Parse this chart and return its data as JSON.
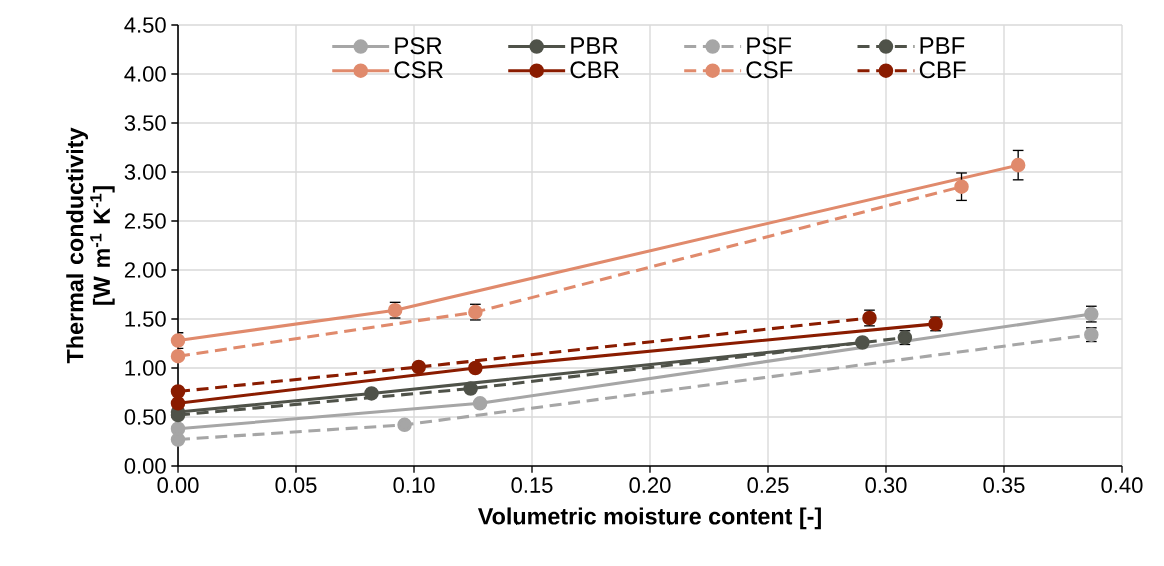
{
  "chart_data": {
    "type": "line",
    "xlabel": "Volumetric moisture content [-]",
    "ylabel": "Thermal conductivity [W m$^{-1}$ K$^{-1}$]",
    "xlim": [
      0,
      0.4
    ],
    "xticks": [
      {
        "value": 0,
        "label": "0.00"
      },
      {
        "value": 0.05,
        "label": "0.05"
      },
      {
        "value": 0.1,
        "label": "0.10"
      },
      {
        "value": 0.15,
        "label": "0.15"
      },
      {
        "value": 0.2,
        "label": "0.20"
      },
      {
        "value": 0.25,
        "label": "0.25"
      },
      {
        "value": 0.3,
        "label": "0.30"
      },
      {
        "value": 0.35,
        "label": "0.35"
      },
      {
        "value": 0.4,
        "label": "0.40"
      }
    ],
    "ylim": [
      0,
      4.5
    ],
    "yticks": [
      {
        "value": 0,
        "label": "0.00"
      },
      {
        "value": 0.5,
        "label": "0.50"
      },
      {
        "value": 1,
        "label": "1.00"
      },
      {
        "value": 1.5,
        "label": "1.50"
      },
      {
        "value": 2,
        "label": "2.00"
      },
      {
        "value": 2.5,
        "label": "2.50"
      },
      {
        "value": 3,
        "label": "3.00"
      },
      {
        "value": 3.5,
        "label": "3.50"
      },
      {
        "value": 4,
        "label": "4.00"
      },
      {
        "value": 4.5,
        "label": "4.50"
      }
    ],
    "grid": true,
    "legend": "top",
    "marker": "circle",
    "series": [
      {
        "name": "PSR",
        "color": "#a6a6a6",
        "line_style": "solid",
        "x": [
          0,
          0.128,
          0.387
        ],
        "values": [
          0.38,
          0.64,
          1.55
        ],
        "errors": [
          null,
          null,
          0.08
        ]
      },
      {
        "name": "PBR",
        "color": "#4f5249",
        "line_style": "solid",
        "x": [
          0,
          0.082,
          0.29
        ],
        "values": [
          0.55,
          0.74,
          1.26
        ],
        "errors": [
          null,
          null,
          null
        ]
      },
      {
        "name": "PSF",
        "color": "#a6a6a6",
        "line_style": "dashed",
        "x": [
          0,
          0.096,
          0.387
        ],
        "values": [
          0.27,
          0.42,
          1.34
        ],
        "errors": [
          null,
          null,
          0.07
        ]
      },
      {
        "name": "PBF",
        "color": "#4f5249",
        "line_style": "dashed",
        "x": [
          0,
          0.124,
          0.308
        ],
        "values": [
          0.52,
          0.79,
          1.31
        ],
        "errors": [
          null,
          null,
          0.07
        ]
      },
      {
        "name": "CSR",
        "color": "#e08a6c",
        "line_style": "solid",
        "x": [
          0,
          0.092,
          0.356
        ],
        "values": [
          1.28,
          1.59,
          3.07
        ],
        "errors": [
          0.08,
          0.08,
          0.15
        ]
      },
      {
        "name": "CBR",
        "color": "#8a1c00",
        "line_style": "solid",
        "x": [
          0,
          0.126,
          0.321
        ],
        "values": [
          0.64,
          1.0,
          1.45
        ],
        "errors": [
          null,
          null,
          0.07
        ]
      },
      {
        "name": "CSF",
        "color": "#e08a6c",
        "line_style": "dashed",
        "x": [
          0,
          0.126,
          0.332
        ],
        "values": [
          1.12,
          1.57,
          2.85
        ],
        "errors": [
          null,
          0.08,
          0.14
        ]
      },
      {
        "name": "CBF",
        "color": "#8a1c00",
        "line_style": "dashed",
        "x": [
          0,
          0.102,
          0.293
        ],
        "values": [
          0.76,
          1.01,
          1.51
        ],
        "errors": [
          null,
          null,
          0.08
        ]
      }
    ]
  }
}
